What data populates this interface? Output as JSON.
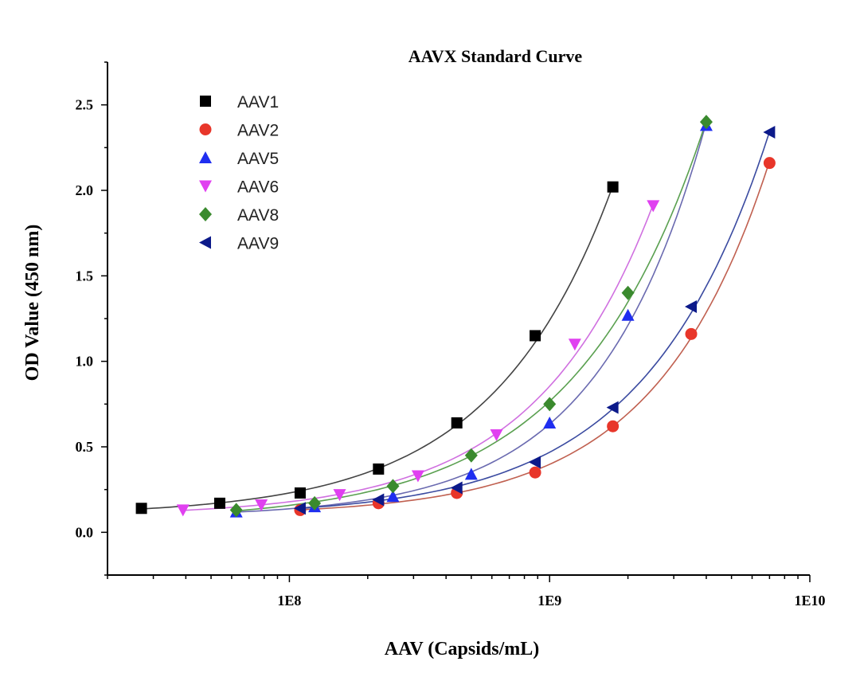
{
  "chart_data": {
    "type": "scatter",
    "title": "AAVX Standard Curve",
    "xlabel": "AAV (Capsids/mL)",
    "ylabel": "OD Value (450 nm)",
    "x_scale": "log",
    "xlim": [
      20000000,
      10000000000
    ],
    "ylim": [
      -0.25,
      2.75
    ],
    "x_ticks": [
      {
        "value": 100000000,
        "label": "1E8"
      },
      {
        "value": 1000000000,
        "label": "1E9"
      },
      {
        "value": 10000000000,
        "label": "1E10"
      }
    ],
    "y_ticks": [
      {
        "value": 0.0,
        "label": "0.0"
      },
      {
        "value": 0.5,
        "label": "0.5"
      },
      {
        "value": 1.0,
        "label": "1.0"
      },
      {
        "value": 1.5,
        "label": "1.5"
      },
      {
        "value": 2.0,
        "label": "2.0"
      },
      {
        "value": 2.5,
        "label": "2.5"
      }
    ],
    "grid": false,
    "legend_position": "top-left",
    "series": [
      {
        "name": "AAV1",
        "marker": "square",
        "color": "#000000",
        "line_color": "#444444",
        "x": [
          27000000,
          54000000,
          110000000,
          220000000,
          440000000,
          880000000,
          1750000000
        ],
        "y": [
          0.14,
          0.17,
          0.23,
          0.37,
          0.64,
          1.15,
          2.02
        ]
      },
      {
        "name": "AAV2",
        "marker": "circle",
        "color": "#e8362a",
        "line_color": "#c06050",
        "x": [
          110000000,
          220000000,
          440000000,
          880000000,
          1750000000,
          3500000000,
          7000000000
        ],
        "y": [
          0.13,
          0.17,
          0.23,
          0.35,
          0.62,
          1.16,
          2.16
        ]
      },
      {
        "name": "AAV5",
        "marker": "triangle-up",
        "color": "#1f2ef0",
        "line_color": "#6a6ab0",
        "x": [
          62500000,
          125000000,
          250000000,
          500000000,
          1000000000,
          2000000000,
          4000000000
        ],
        "y": [
          0.12,
          0.15,
          0.21,
          0.34,
          0.64,
          1.27,
          2.38
        ]
      },
      {
        "name": "AAV6",
        "marker": "triangle-down",
        "color": "#e040f0",
        "line_color": "#d070e0",
        "x": [
          39000000,
          78000000,
          156000000,
          312000000,
          625000000,
          1250000000,
          2500000000
        ],
        "y": [
          0.13,
          0.16,
          0.22,
          0.33,
          0.57,
          1.1,
          1.91
        ]
      },
      {
        "name": "AAV8",
        "marker": "diamond",
        "color": "#3a8a2e",
        "line_color": "#5aa050",
        "x": [
          62500000,
          125000000,
          250000000,
          500000000,
          1000000000,
          2000000000,
          4000000000
        ],
        "y": [
          0.13,
          0.17,
          0.27,
          0.45,
          0.75,
          1.4,
          2.4
        ]
      },
      {
        "name": "AAV9",
        "marker": "triangle-left",
        "color": "#0c1a8a",
        "line_color": "#3a4aa0",
        "x": [
          110000000,
          220000000,
          440000000,
          880000000,
          1750000000,
          3500000000,
          7000000000
        ],
        "y": [
          0.14,
          0.19,
          0.26,
          0.41,
          0.73,
          1.32,
          2.34
        ]
      }
    ]
  }
}
